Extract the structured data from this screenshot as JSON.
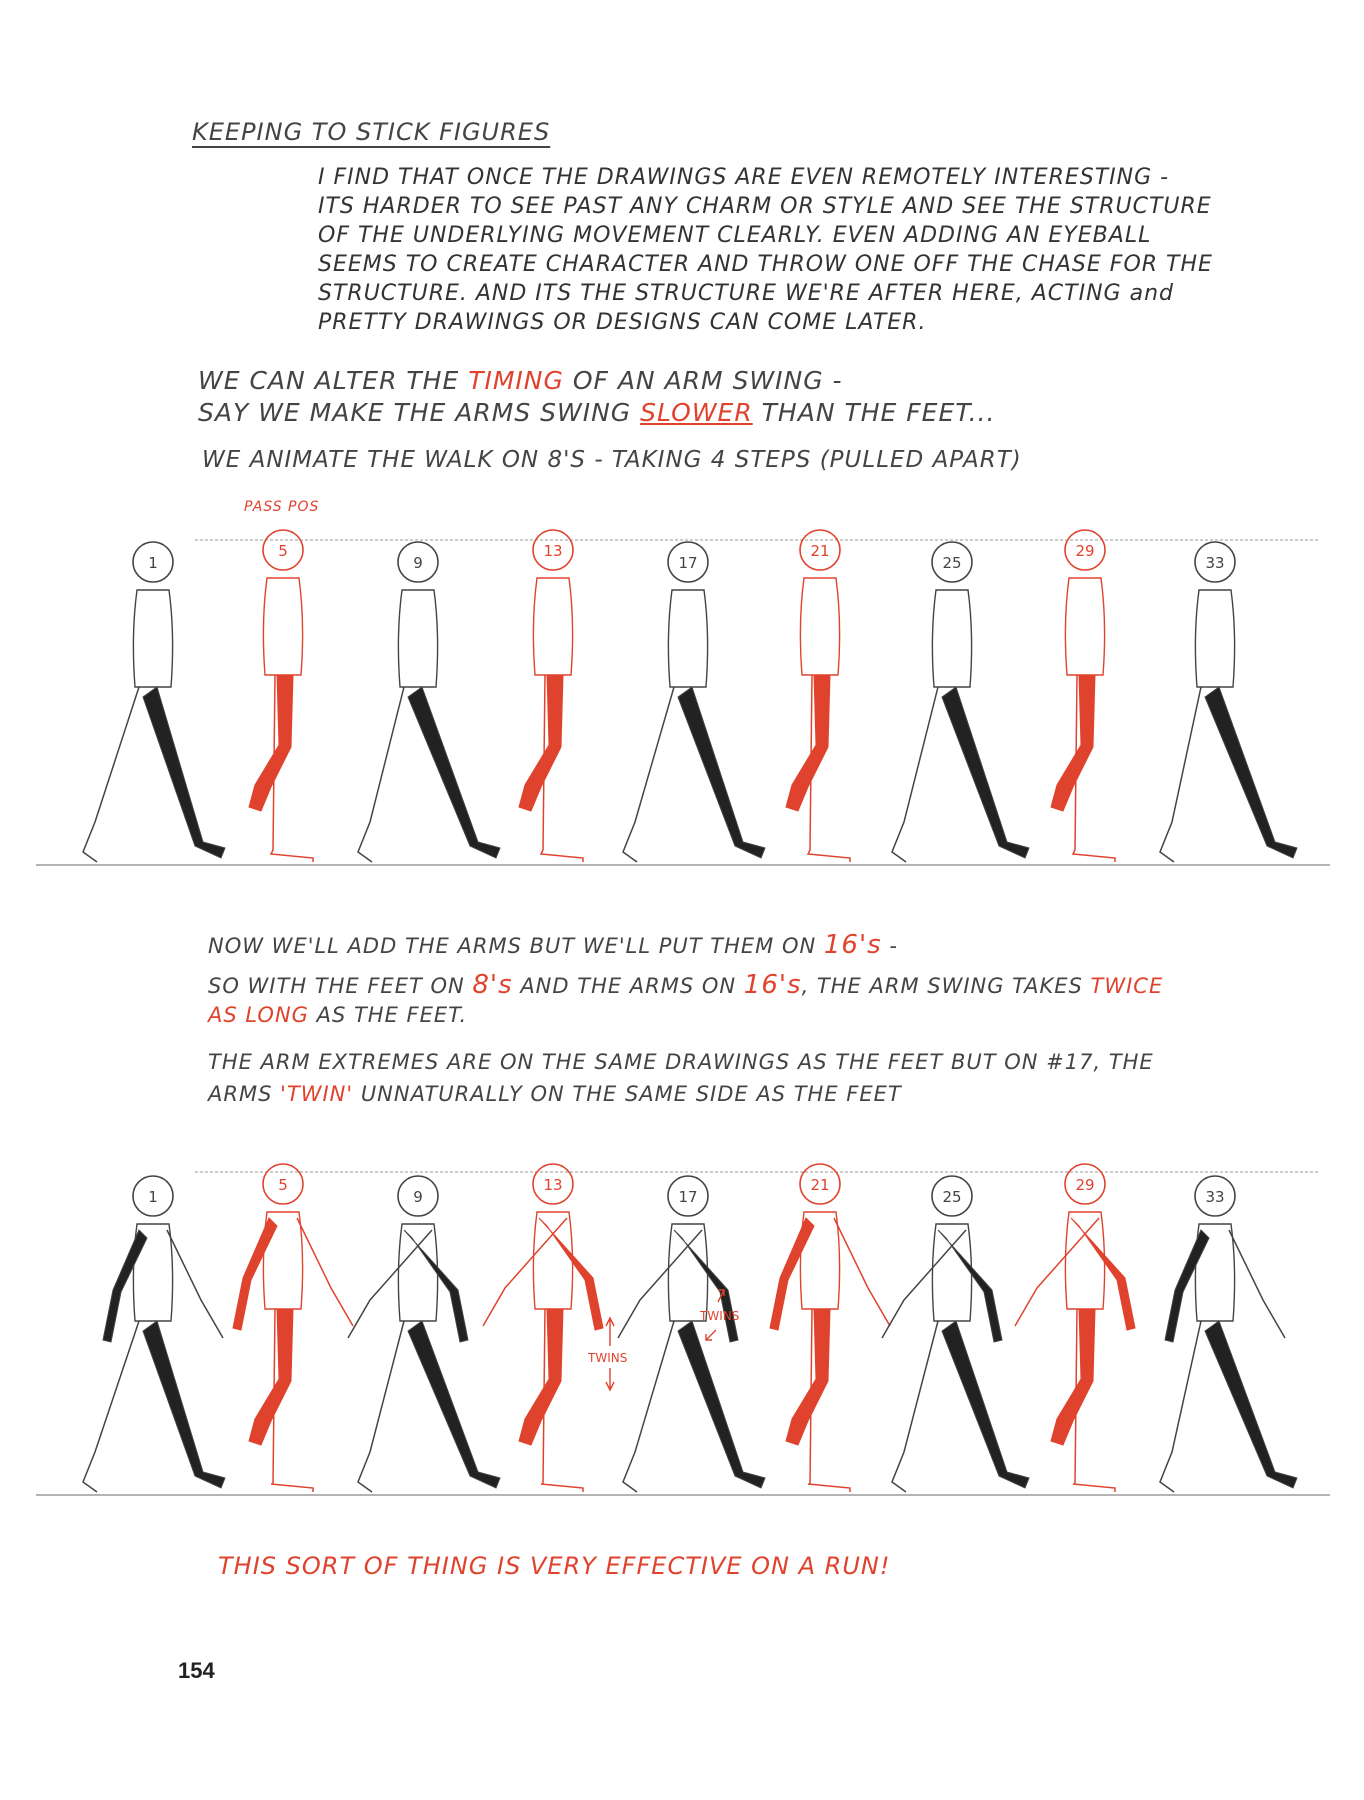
{
  "title": "KEEPING TO STICK FIGURES",
  "intro": [
    "I FIND THAT ONCE THE DRAWINGS ARE EVEN REMOTELY INTERESTING -",
    "ITS HARDER TO SEE PAST ANY CHARM OR STYLE AND SEE THE STRUCTURE",
    "OF THE UNDERLYING MOVEMENT CLEARLY.  EVEN ADDING AN EYEBALL",
    "SEEMS TO CREATE CHARACTER AND THROW ONE OFF THE CHASE FOR THE",
    "STRUCTURE.  AND ITS THE STRUCTURE WE'RE AFTER HERE, ACTING and",
    "PRETTY DRAWINGS OR DESIGNS CAN COME LATER."
  ],
  "timing": {
    "a1": "WE CAN ALTER THE ",
    "a2": "TIMING",
    "a3": " OF AN ARM SWING -",
    "b1": "SAY WE MAKE THE ARMS SWING ",
    "b2": "SLOWER",
    "b3": " THAN THE FEET...",
    "c": "WE ANIMATE THE WALK ON 8'S - TAKING 4 STEPS (PULLED APART)"
  },
  "pass_pos": "PASS POS",
  "frames": [
    "1",
    "5",
    "9",
    "13",
    "17",
    "21",
    "25",
    "29",
    "33"
  ],
  "arms_text": {
    "a1": "NOW WE'LL ADD THE ARMS BUT WE'LL PUT THEM ON ",
    "a2": "16's",
    "a3": " -",
    "b1": "SO WITH THE FEET ON ",
    "b2": "8's",
    "b3": " AND THE ARMS ON ",
    "b4": "16's",
    "b5": ", THE ARM SWING TAKES ",
    "b6": "TWICE",
    "c1": "AS LONG",
    "c2": " AS THE FEET.",
    "d": "THE ARM EXTREMES ARE ON THE SAME DRAWINGS AS THE FEET BUT ON #17, THE",
    "e1": "ARMS ",
    "e2": "'TWIN'",
    "e3": " UNNATURALLY ON THE SAME SIDE AS THE FEET"
  },
  "twins_label": "TWINS",
  "footer": "THIS SORT OF THING IS VERY EFFECTIVE ON A RUN!",
  "page_number": "154",
  "colors": {
    "red": "#e0432d",
    "ink": "#333333"
  }
}
